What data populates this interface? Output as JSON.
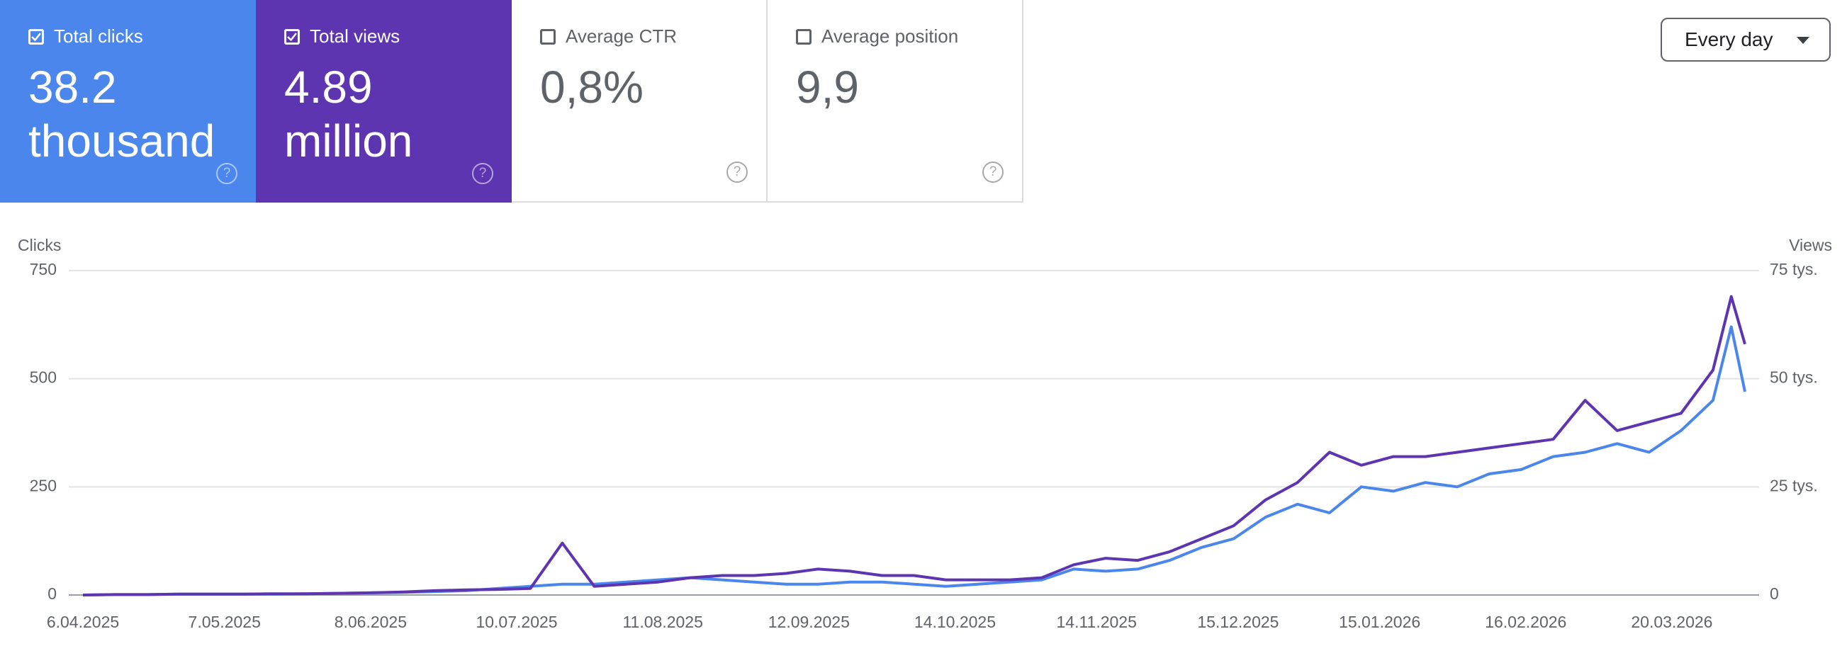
{
  "cards": [
    {
      "label": "Total clicks",
      "value": "38.2 thousand",
      "checked": true,
      "color": "#4a86ec"
    },
    {
      "label": "Total views",
      "value": "4.89 million",
      "checked": true,
      "color": "#5e35b1"
    },
    {
      "label": "Average CTR",
      "value": "0,8%",
      "checked": false,
      "color": "#ffffff"
    },
    {
      "label": "Average position",
      "value": "9,9",
      "checked": false,
      "color": "#ffffff"
    }
  ],
  "dropdown": "Every day",
  "chart_data": {
    "type": "line",
    "ylabel": "Clicks",
    "y2label": "Views",
    "x": [
      "6.04.2025",
      "13.04.2025",
      "20.04.2025",
      "27.04.2025",
      "4.05.2025",
      "11.05.2025",
      "18.05.2025",
      "25.05.2025",
      "1.06.2025",
      "8.06.2025",
      "15.06.2025",
      "22.06.2025",
      "29.06.2025",
      "6.07.2025",
      "13.07.2025",
      "20.07.2025",
      "27.07.2025",
      "3.08.2025",
      "10.08.2025",
      "17.08.2025",
      "24.08.2025",
      "31.08.2025",
      "7.09.2025",
      "14.09.2025",
      "21.09.2025",
      "28.09.2025",
      "5.10.2025",
      "12.10.2025",
      "19.10.2025",
      "26.10.2025",
      "2.11.2025",
      "9.11.2025",
      "16.11.2025",
      "23.11.2025",
      "30.11.2025",
      "7.12.2025",
      "14.12.2025",
      "21.12.2025",
      "28.12.2025",
      "4.01.2026",
      "11.01.2026",
      "18.01.2026",
      "25.01.2026",
      "1.02.2026",
      "8.02.2026",
      "15.02.2026",
      "22.02.2026",
      "1.03.2026",
      "8.03.2026",
      "15.03.2026",
      "22.03.2026",
      "29.03.2026",
      "2.04.2026",
      "5.04.2026"
    ],
    "series": [
      {
        "name": "Clicks",
        "color": "#4a86ec",
        "values": [
          0,
          1,
          1,
          2,
          2,
          2,
          2,
          3,
          4,
          5,
          6,
          8,
          10,
          15,
          20,
          25,
          25,
          30,
          35,
          40,
          35,
          30,
          25,
          25,
          30,
          30,
          25,
          20,
          25,
          30,
          35,
          60,
          55,
          60,
          80,
          110,
          130,
          180,
          210,
          190,
          250,
          240,
          260,
          250,
          280,
          290,
          320,
          330,
          350,
          330,
          380,
          450,
          620,
          470
        ]
      },
      {
        "name": "Views",
        "color": "#5e35b1",
        "axis": "y2",
        "values": [
          0,
          100,
          100,
          200,
          200,
          200,
          300,
          300,
          400,
          500,
          700,
          1000,
          1200,
          1300,
          1500,
          12000,
          2000,
          2500,
          3000,
          4000,
          4500,
          4500,
          5000,
          6000,
          5500,
          4500,
          4500,
          3500,
          3500,
          3500,
          4000,
          7000,
          8500,
          8000,
          10000,
          13000,
          16000,
          22000,
          26000,
          33000,
          30000,
          32000,
          32000,
          33000,
          34000,
          35000,
          36000,
          45000,
          38000,
          40000,
          42000,
          52000,
          69000,
          58000
        ]
      }
    ],
    "xticks": [
      "6.04.2025",
      "7.05.2025",
      "8.06.2025",
      "10.07.2025",
      "11.08.2025",
      "12.09.2025",
      "14.10.2025",
      "14.11.2025",
      "15.12.2025",
      "15.01.2026",
      "16.02.2026",
      "20.03.2026"
    ],
    "ylim": [
      0,
      750
    ],
    "yticks": [
      0,
      250,
      500,
      750
    ],
    "y2lim": [
      0,
      75000
    ],
    "y2ticks": [
      0,
      {
        "value": 25000,
        "label": "25 tys."
      },
      {
        "value": 50000,
        "label": "50 tys."
      },
      {
        "value": 75000,
        "label": "75 tys."
      }
    ],
    "grid": true
  }
}
